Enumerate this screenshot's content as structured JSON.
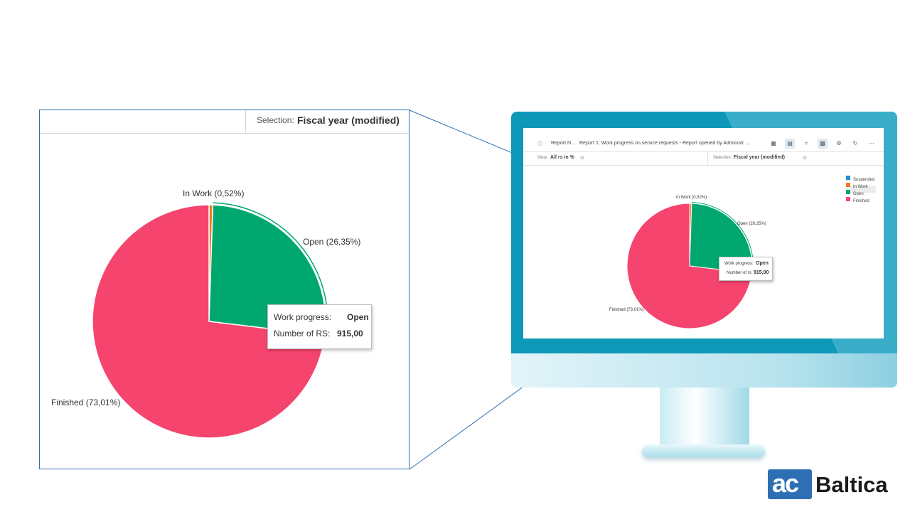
{
  "zoom_panel": {
    "selection_label": "Selection:",
    "selection_value": "Fiscal year (modified)"
  },
  "tooltip": {
    "work_progress_label": "Work progress:",
    "work_progress_value": "Open",
    "number_label": "Number of RS:",
    "number_value": "915,00"
  },
  "screen": {
    "toolbar": {
      "breadcrumb": "Report N...",
      "title": "Report 1: Work progress on service requests - Report opened by Administr ...",
      "icons": [
        "grid-icon",
        "document-icon",
        "filter-icon",
        "chart-settings-icon",
        "gear-icon",
        "refresh-icon",
        "more-icon"
      ]
    },
    "view_label": "View:",
    "view_value": "All rs in %",
    "selection_label": "Selection:",
    "selection_value": "Fiscal year (modified)",
    "tooltip": {
      "work_progress_label": "Work progress:",
      "work_progress_value": "Open",
      "number_label": "Number of rs:",
      "number_value": "915,00"
    },
    "legend": [
      {
        "label": "Suspended",
        "color": "#1f8ed6"
      },
      {
        "label": "In Work",
        "color": "#f07a26"
      },
      {
        "label": "Open",
        "color": "#00a86f"
      },
      {
        "label": "Finished",
        "color": "#f5456f"
      }
    ]
  },
  "chart_data": {
    "type": "pie",
    "highlighted": "Open",
    "slices": [
      {
        "name": "In Work",
        "label": "In Work (0,52%)",
        "value": 0.52,
        "color": "#f07a26"
      },
      {
        "name": "Open",
        "label": "Open (26,35%)",
        "value": 26.35,
        "color": "#00a86f"
      },
      {
        "name": "Finished",
        "label": "Finished (73,01%)",
        "value": 73.01,
        "color": "#f5456f"
      }
    ]
  },
  "brand": {
    "logo_mark": "ac",
    "name": "Baltica",
    "color": "#2e6fb3"
  }
}
